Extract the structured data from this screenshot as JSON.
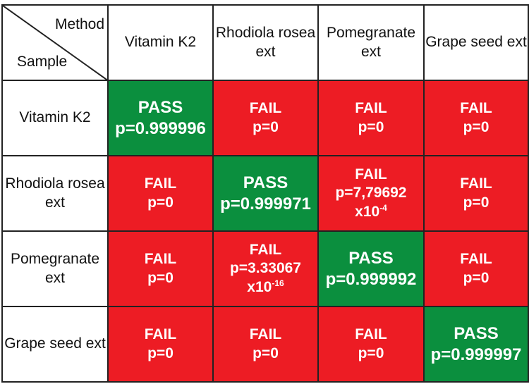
{
  "corner": {
    "method_label": "Method",
    "sample_label": "Sample"
  },
  "methods": [
    "Vitamin K2",
    "Rhodiola rosea ext",
    "Pomegranate ext",
    "Grape seed ext"
  ],
  "colors": {
    "pass": "#0b8f3e",
    "fail": "#ed1c24"
  },
  "rows": [
    {
      "sample": "Vitamin K2",
      "cells": [
        {
          "result": "PASS",
          "p": "p=0.999996",
          "exp": ""
        },
        {
          "result": "FAIL",
          "p": "p=0",
          "exp": ""
        },
        {
          "result": "FAIL",
          "p": "p=0",
          "exp": ""
        },
        {
          "result": "FAIL",
          "p": "p=0",
          "exp": ""
        }
      ]
    },
    {
      "sample": "Rhodiola rosea ext",
      "cells": [
        {
          "result": "FAIL",
          "p": "p=0",
          "exp": ""
        },
        {
          "result": "PASS",
          "p": "p=0.999971",
          "exp": ""
        },
        {
          "result": "FAIL",
          "p": "p=7,79692",
          "exp": "-4"
        },
        {
          "result": "FAIL",
          "p": "p=0",
          "exp": ""
        }
      ]
    },
    {
      "sample": "Pomegranate ext",
      "cells": [
        {
          "result": "FAIL",
          "p": "p=0",
          "exp": ""
        },
        {
          "result": "FAIL",
          "p": "p=3.33067",
          "exp": "-16"
        },
        {
          "result": "PASS",
          "p": "p=0.999992",
          "exp": ""
        },
        {
          "result": "FAIL",
          "p": "p=0",
          "exp": ""
        }
      ]
    },
    {
      "sample": "Grape seed ext",
      "cells": [
        {
          "result": "FAIL",
          "p": "p=0",
          "exp": ""
        },
        {
          "result": "FAIL",
          "p": "p=0",
          "exp": ""
        },
        {
          "result": "FAIL",
          "p": "p=0",
          "exp": ""
        },
        {
          "result": "PASS",
          "p": "p=0.999997",
          "exp": ""
        }
      ]
    }
  ],
  "exp_prefix": "x10"
}
